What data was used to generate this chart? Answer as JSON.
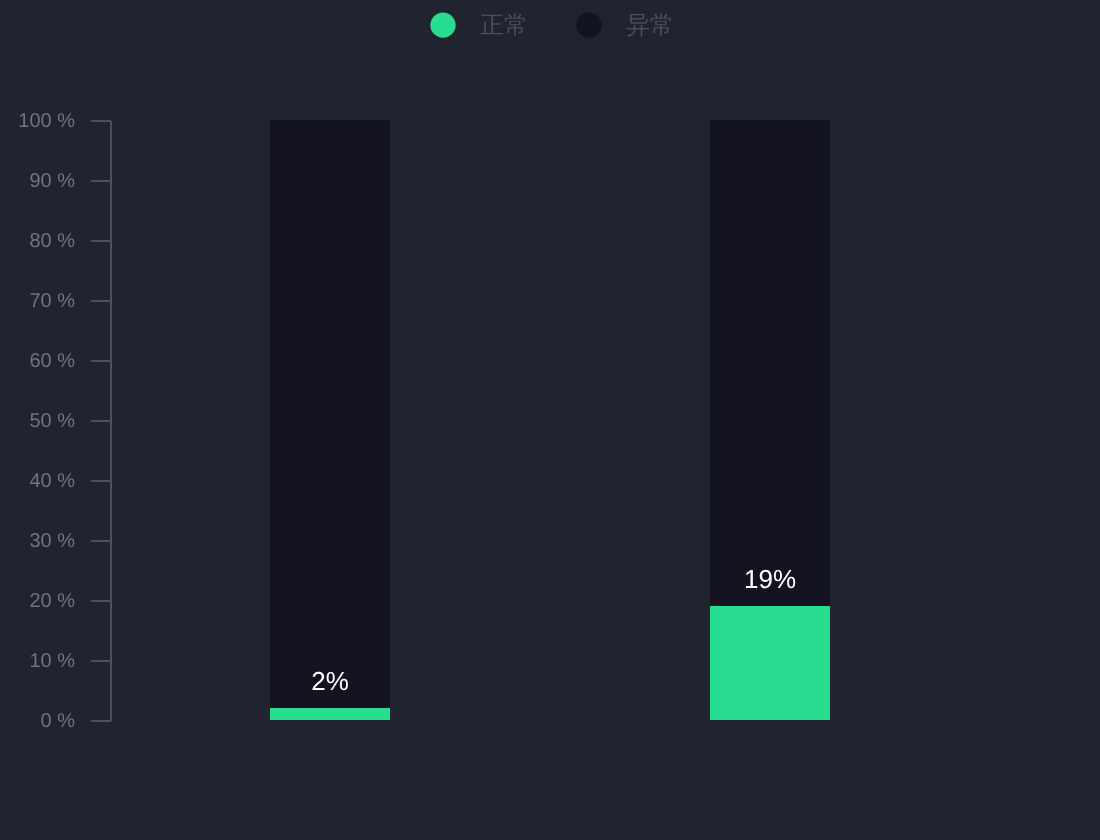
{
  "chart_data": {
    "type": "bar",
    "categories": [
      null,
      null
    ],
    "series": [
      {
        "name": "正常",
        "color": "#28dc90",
        "values": [
          2,
          19
        ],
        "value_labels": [
          "2%",
          "19%"
        ]
      },
      {
        "name": "异常",
        "color": "#13141f",
        "values": [
          98,
          81
        ]
      }
    ],
    "stacked": true,
    "ylim": [
      0,
      100
    ],
    "yticks": [
      {
        "value": 0,
        "label": "0 %"
      },
      {
        "value": 10,
        "label": "10 %"
      },
      {
        "value": 20,
        "label": "20 %"
      },
      {
        "value": 30,
        "label": "30 %"
      },
      {
        "value": 40,
        "label": "40 %"
      },
      {
        "value": 50,
        "label": "50 %"
      },
      {
        "value": 60,
        "label": "60 %"
      },
      {
        "value": 70,
        "label": "70 %"
      },
      {
        "value": 80,
        "label": "80 %"
      },
      {
        "value": 90,
        "label": "90 %"
      },
      {
        "value": 100,
        "label": "100 %"
      }
    ],
    "grid": false,
    "legend": "top",
    "tick_labels": "y"
  }
}
